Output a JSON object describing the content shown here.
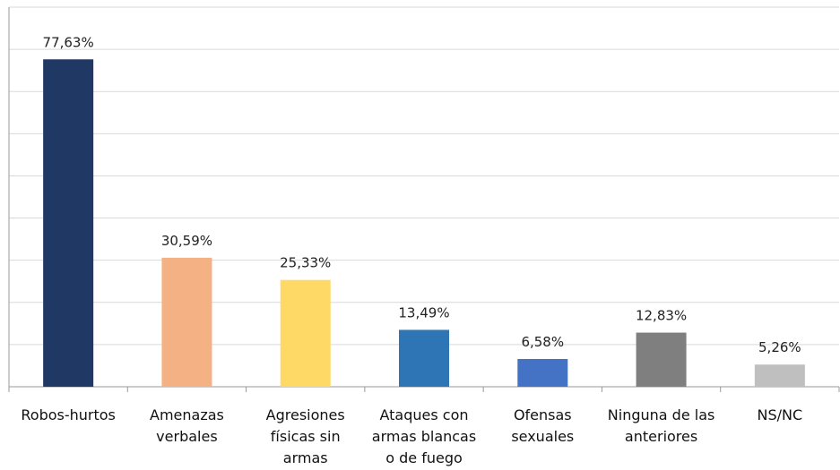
{
  "chart_data": {
    "type": "bar",
    "categories": [
      "Robos-hurtos",
      "Amenazas\nverbales",
      "Agresiones\nfísicas sin\narmas",
      "Ataques con\narmas blancas\no de fuego",
      "Ofensas\nsexuales",
      "Ninguna de las\nanteriores",
      "NS/NC"
    ],
    "values": [
      77.63,
      30.59,
      25.33,
      13.49,
      6.58,
      12.83,
      5.26
    ],
    "value_labels": [
      "77,63%",
      "30,59%",
      "25,33%",
      "13,49%",
      "6,58%",
      "12,83%",
      "5,26%"
    ],
    "colors": [
      "#203864",
      "#f4b183",
      "#ffd966",
      "#2e75b6",
      "#4472c4",
      "#7f7f7f",
      "#bfbfbf"
    ],
    "ylim": [
      0,
      90
    ],
    "yticks": [
      0,
      10,
      20,
      30,
      40,
      50,
      60,
      70,
      80,
      90
    ],
    "grid": true
  }
}
